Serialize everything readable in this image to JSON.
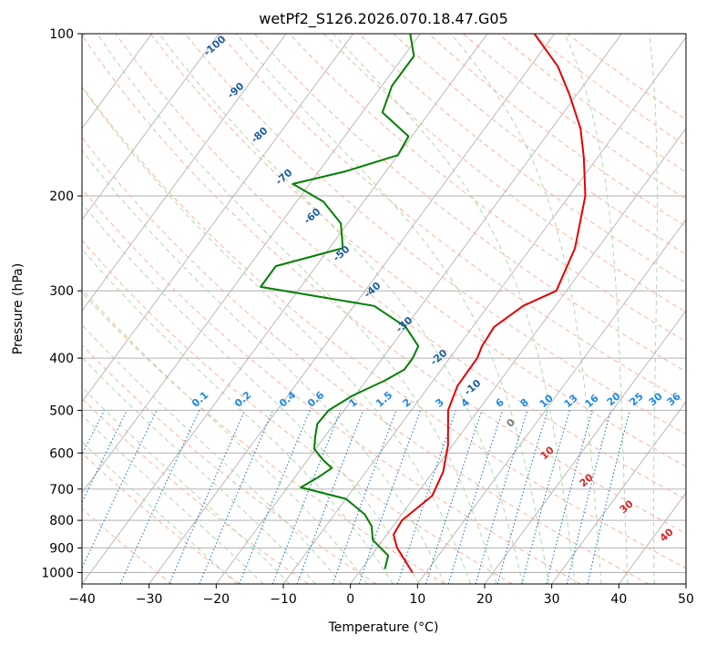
{
  "chart_data": {
    "type": "line",
    "title": "wetPf2_S126.2026.070.18.47.G05",
    "xlabel": "Temperature (°C)",
    "ylabel": "Pressure (hPa)",
    "xlim": [
      -40,
      50
    ],
    "ylim": [
      1050,
      100
    ],
    "y_scale": "log",
    "grid": true,
    "x_ticks": [
      -40,
      -30,
      -20,
      -10,
      0,
      10,
      20,
      30,
      40,
      50
    ],
    "y_ticks": [
      100,
      200,
      300,
      400,
      500,
      600,
      700,
      800,
      900,
      1000
    ],
    "series": [
      {
        "color": "#e60000",
        "x_units": "temperature",
        "points": [
          [
            8.0,
            1000
          ],
          [
            3.0,
            900
          ],
          [
            1.0,
            850
          ],
          [
            0.7,
            800
          ],
          [
            2.5,
            720
          ],
          [
            1.5,
            650
          ],
          [
            -0.7,
            580
          ],
          [
            -4.5,
            500
          ],
          [
            -5.8,
            450
          ],
          [
            -5.9,
            400
          ],
          [
            -6.5,
            380
          ],
          [
            -6.8,
            350
          ],
          [
            -4.8,
            320
          ],
          [
            -1.5,
            300
          ],
          [
            -3.4,
            250
          ],
          [
            -7.6,
            200
          ],
          [
            -12.0,
            170
          ],
          [
            -15.7,
            150
          ],
          [
            -21.0,
            130
          ],
          [
            -25.9,
            115
          ],
          [
            -33.0,
            100
          ]
        ]
      },
      {
        "color": "#007f00",
        "x_units": "temperature",
        "points": [
          [
            3.5,
            985
          ],
          [
            2.5,
            930
          ],
          [
            -1.5,
            870
          ],
          [
            -3.2,
            820
          ],
          [
            -5.5,
            780
          ],
          [
            -10.0,
            730
          ],
          [
            -18.0,
            695
          ],
          [
            -16.5,
            665
          ],
          [
            -15.5,
            640
          ],
          [
            -17.5,
            620
          ],
          [
            -20.2,
            590
          ],
          [
            -21.4,
            560
          ],
          [
            -22.5,
            530
          ],
          [
            -22.3,
            500
          ],
          [
            -20.4,
            470
          ],
          [
            -17.2,
            440
          ],
          [
            -15.5,
            420
          ],
          [
            -15.5,
            400
          ],
          [
            -16.0,
            380
          ],
          [
            -20.0,
            350
          ],
          [
            -27.0,
            320
          ],
          [
            -46.0,
            295
          ],
          [
            -46.0,
            270
          ],
          [
            -38.0,
            250
          ],
          [
            -41.0,
            225
          ],
          [
            -46.0,
            205
          ],
          [
            -52.5,
            190
          ],
          [
            -46.0,
            180
          ],
          [
            -40.0,
            168
          ],
          [
            -40.5,
            155
          ],
          [
            -47.0,
            140
          ],
          [
            -48.5,
            125
          ],
          [
            -48.5,
            110
          ],
          [
            -51.5,
            100
          ]
        ]
      }
    ],
    "dry_adiabat_labels": [
      "-100",
      "-90",
      "-80",
      "-70",
      "-60",
      "-50",
      "-40",
      "-30",
      "-20",
      "-10"
    ],
    "mixing_ratio_labels": [
      "0.1",
      "0.2",
      "0.4",
      "0.6",
      "1",
      "1.5",
      "2",
      "3",
      "4",
      "6",
      "8",
      "10",
      "13",
      "16",
      "20",
      "25",
      "30",
      "36"
    ],
    "moist_adiabat_labels": [
      "0",
      "10",
      "20",
      "30",
      "40"
    ]
  },
  "colors": {
    "temperature": "#e60000",
    "dewpoint": "#007f00",
    "isotherm": "#aaaaaa",
    "dry_adiabat": "#ffab8f",
    "moist_adiabat": "#a8d5a2",
    "mixing_ratio": "#1f77d4",
    "dry_label": "#1f5f9f",
    "mixing_label": "#1e88e5",
    "moist_label": "#d62728"
  }
}
